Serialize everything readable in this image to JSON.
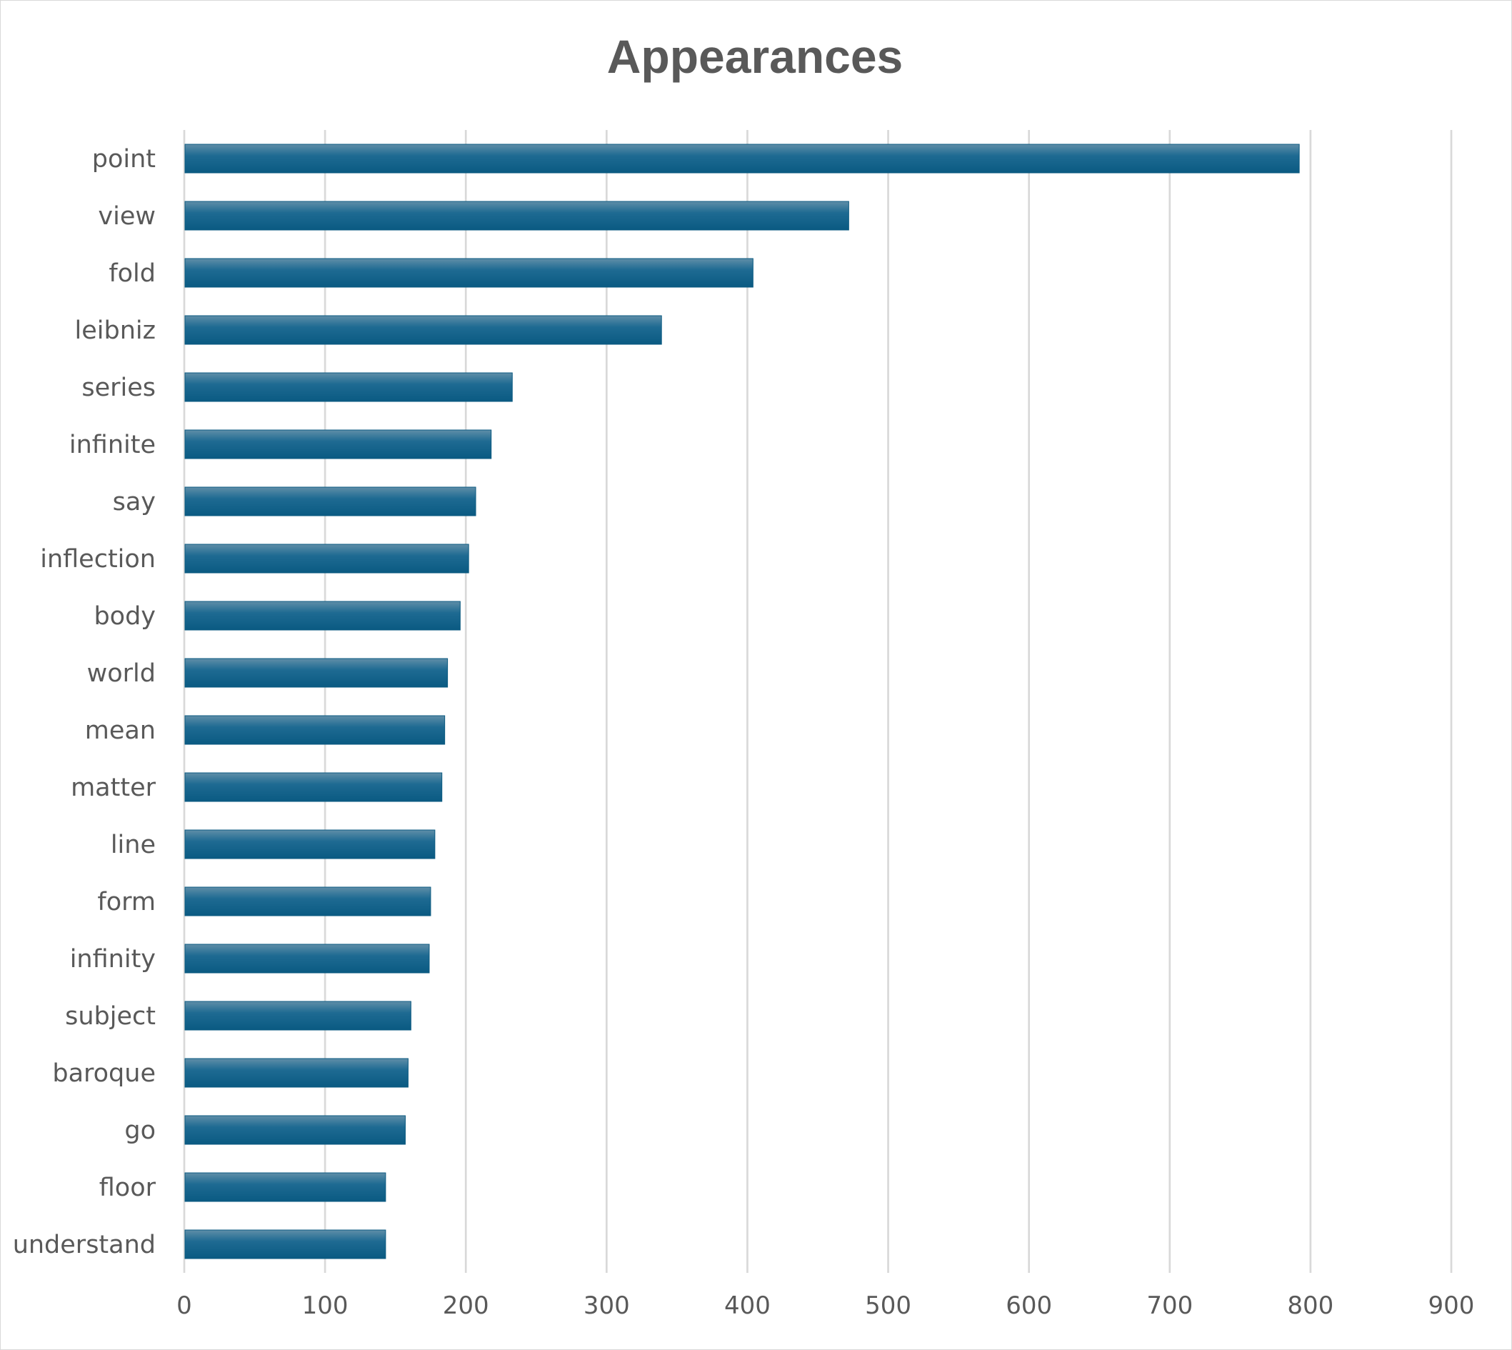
{
  "chart_data": {
    "type": "bar",
    "orientation": "horizontal",
    "title": "Appearances",
    "xlabel": "",
    "ylabel": "",
    "categories": [
      "point",
      "view",
      "fold",
      "leibniz",
      "series",
      "infinite",
      "say",
      "inflection",
      "body",
      "world",
      "mean",
      "matter",
      "line",
      "form",
      "infinity",
      "subject",
      "baroque",
      "go",
      "floor",
      "understand"
    ],
    "values": [
      792,
      472,
      404,
      339,
      233,
      218,
      207,
      202,
      196,
      187,
      185,
      183,
      178,
      175,
      174,
      161,
      159,
      157,
      143,
      143
    ],
    "xlim": [
      0,
      900
    ],
    "xticks": [
      "0",
      "100",
      "200",
      "300",
      "400",
      "500",
      "600",
      "700",
      "800",
      "900"
    ],
    "grid": true,
    "legend": "none",
    "colors": {
      "bar": "#1f6f96",
      "bar_dark": "#0b5a80",
      "text": "#595959",
      "grid": "#d9d9d9"
    }
  }
}
